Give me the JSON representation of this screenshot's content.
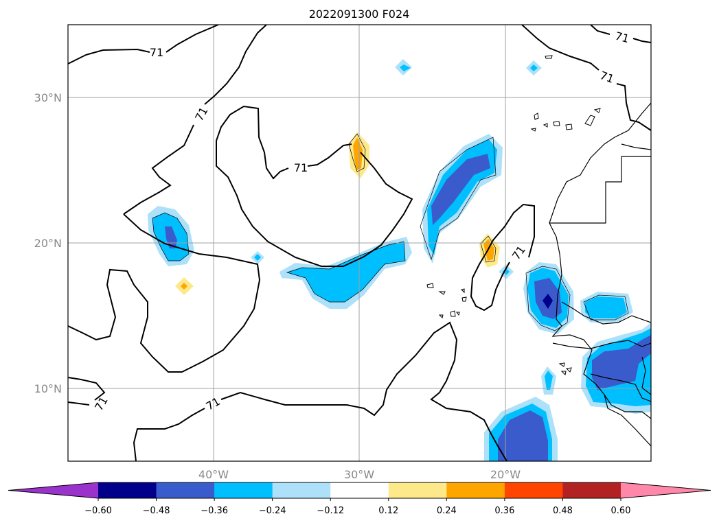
{
  "chart_data": {
    "type": "contour-map",
    "title": "2022091300 F024",
    "map": {
      "lon_range": [
        -50,
        -10
      ],
      "lat_range": [
        5,
        35
      ],
      "x_ticks": [
        {
          "value": -40,
          "label": "40°W"
        },
        {
          "value": -30,
          "label": "30°W"
        },
        {
          "value": -20,
          "label": "20°W"
        }
      ],
      "y_ticks": [
        {
          "value": 10,
          "label": "10°N"
        },
        {
          "value": 20,
          "label": "20°N"
        },
        {
          "value": 30,
          "label": "30°N"
        }
      ],
      "grid": true
    },
    "contour_line": {
      "level": "71",
      "labels_shown": 9
    },
    "colorbar": {
      "orientation": "horizontal",
      "extend": "both",
      "boundaries": [
        -0.6,
        -0.48,
        -0.36,
        -0.24,
        -0.12,
        0.12,
        0.24,
        0.36,
        0.48,
        0.6
      ],
      "tick_labels": [
        "−0.60",
        "−0.48",
        "−0.36",
        "−0.24",
        "−0.12",
        "0.12",
        "0.24",
        "0.36",
        "0.48",
        "0.60"
      ],
      "colors": [
        "#9933cc",
        "#00008b",
        "#3a5bcc",
        "#00bfff",
        "#ade1f9",
        "#ffffff",
        "#fee98a",
        "#ffa500",
        "#ff4500",
        "#b22222",
        "#ff88aa"
      ]
    }
  }
}
